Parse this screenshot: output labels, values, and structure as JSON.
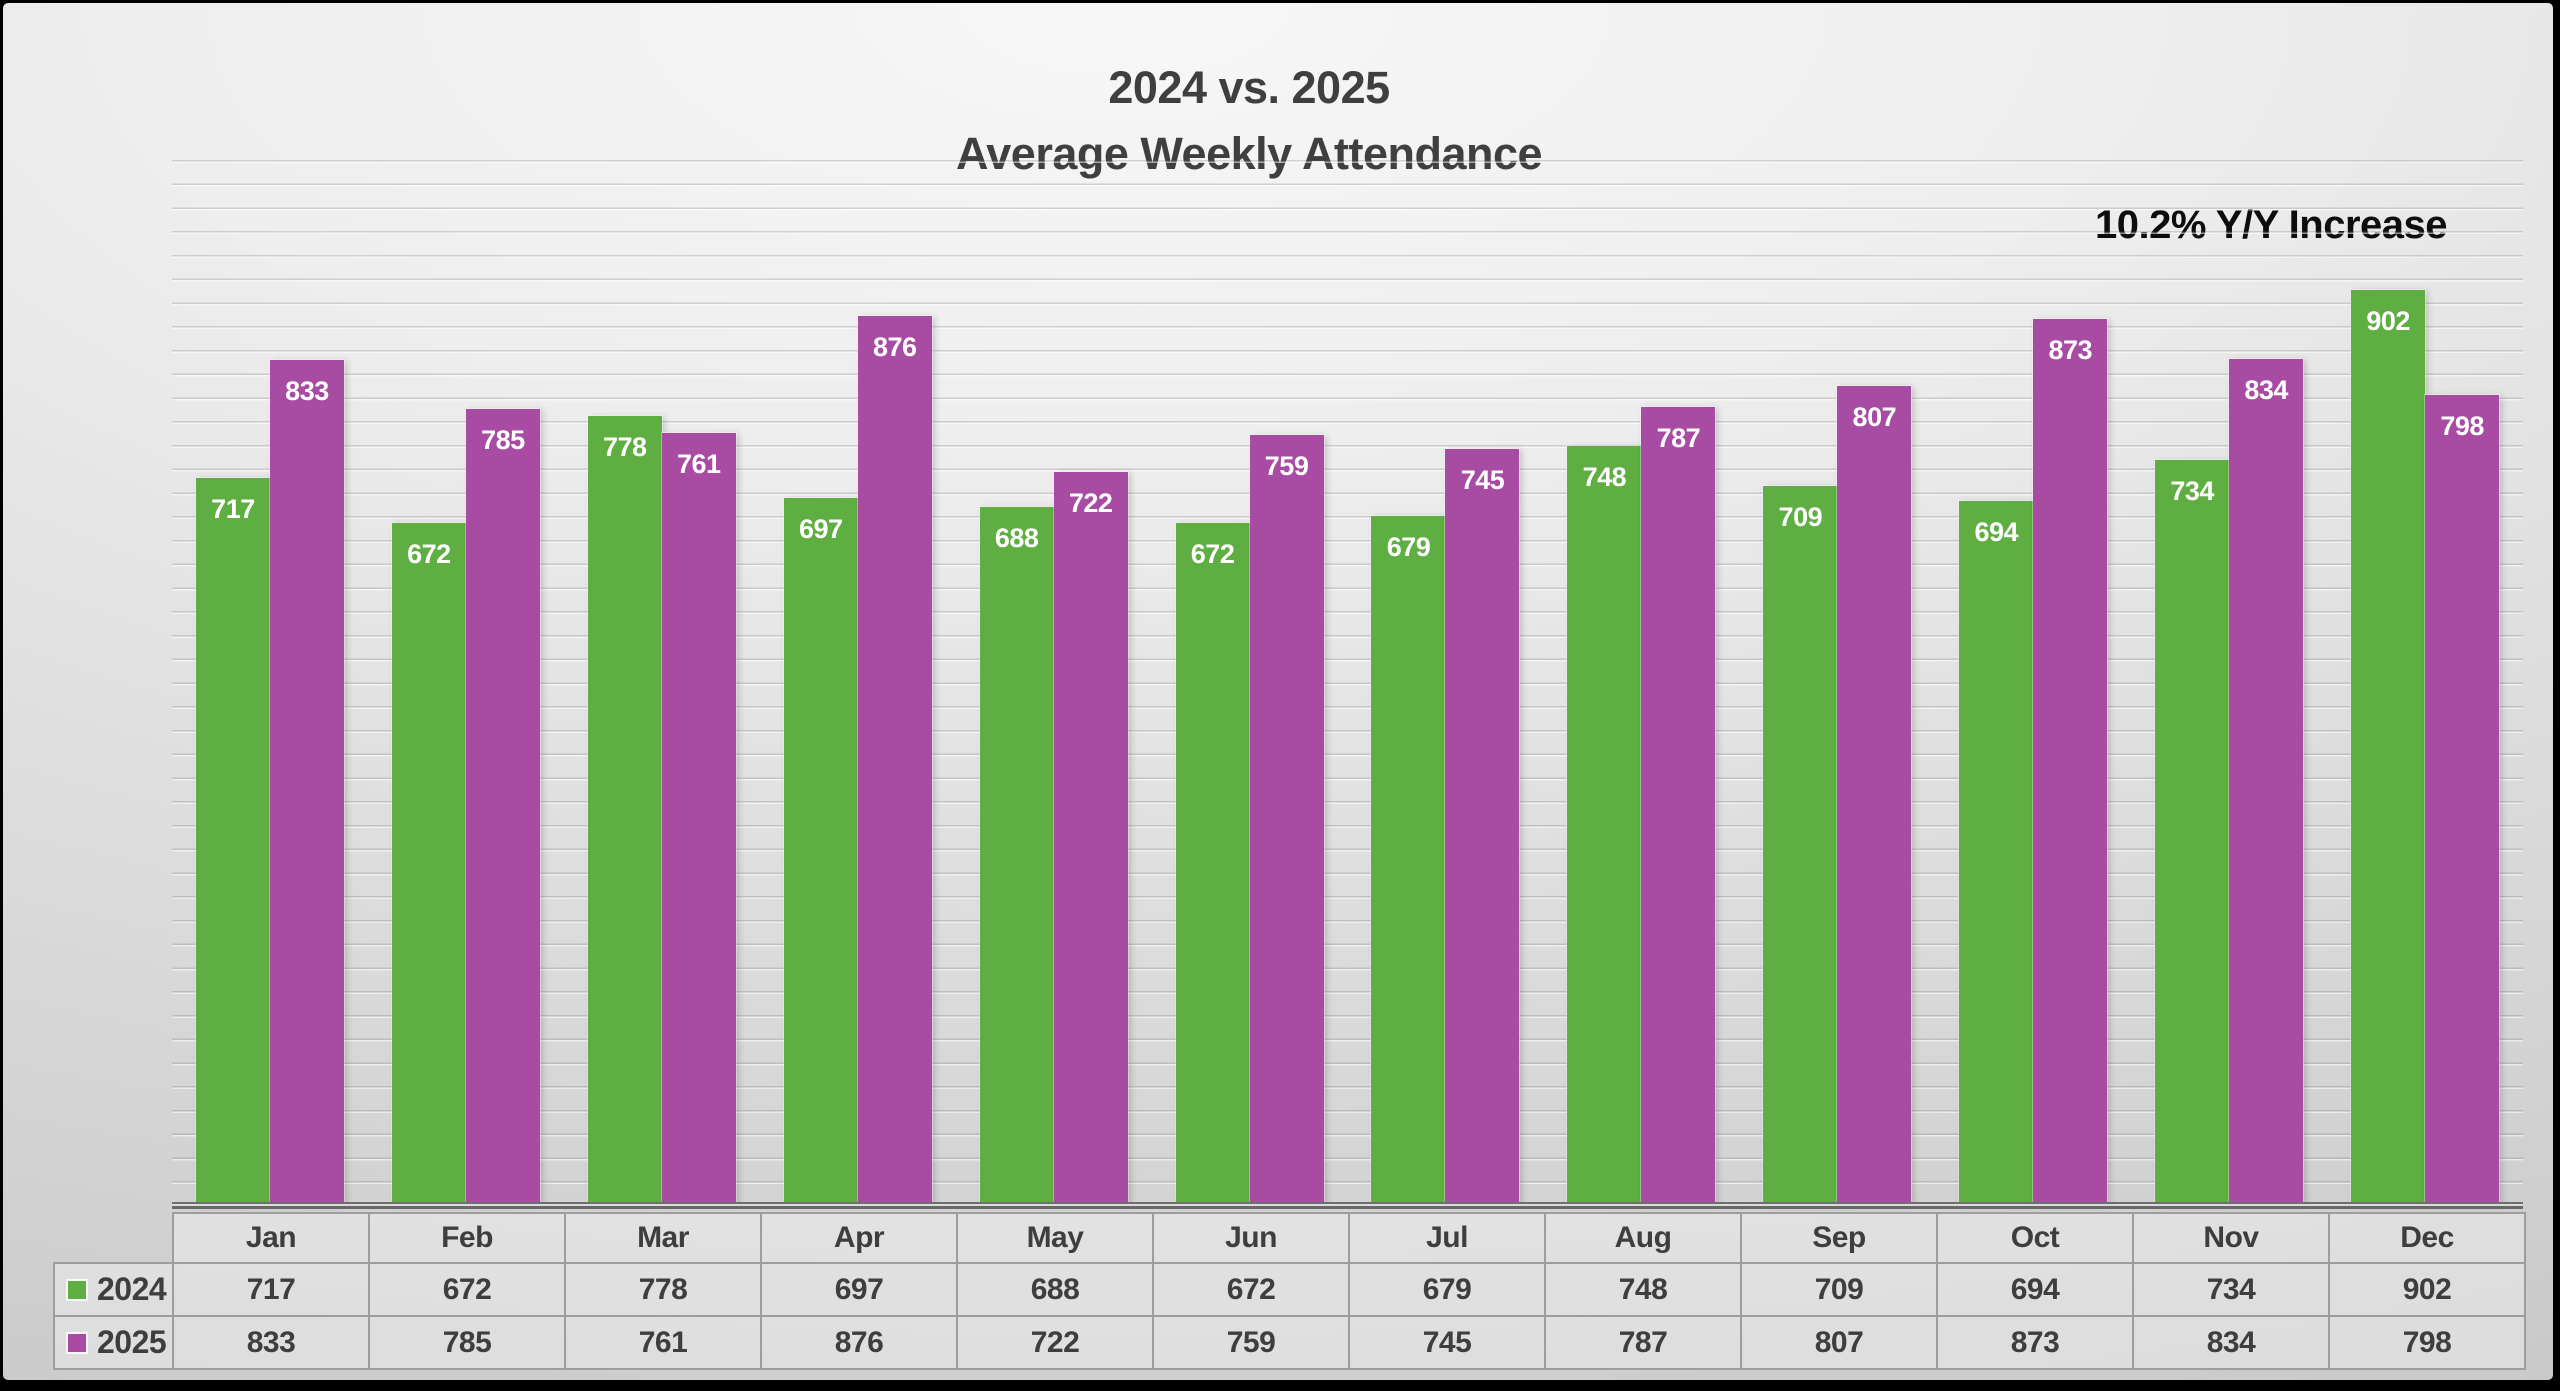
{
  "title": {
    "line1": "2024 vs. 2025",
    "line2": "Average Weekly Attendance"
  },
  "annotation": "10.2% Y/Y Increase",
  "colors": {
    "series_2024": "#5FAE41",
    "series_2025": "#A84BA3",
    "title_text": "#3F3F3F",
    "annotation_text": "#0D0D0D",
    "table_text": "#3E3E3E",
    "table_border": "#9D9D9D",
    "bar_label_text": "#FFFFFF"
  },
  "chart_data": {
    "type": "bar",
    "title": "2024 vs. 2025 Average Weekly Attendance",
    "annotation": "10.2% Y/Y Increase",
    "categories": [
      "Jan",
      "Feb",
      "Mar",
      "Apr",
      "May",
      "Jun",
      "Jul",
      "Aug",
      "Sep",
      "Oct",
      "Nov",
      "Dec"
    ],
    "series": [
      {
        "name": "2024",
        "color": "#5FAE41",
        "values": [
          717,
          672,
          778,
          697,
          688,
          672,
          679,
          748,
          709,
          694,
          734,
          902
        ]
      },
      {
        "name": "2025",
        "color": "#A84BA3",
        "values": [
          833,
          785,
          761,
          876,
          722,
          759,
          745,
          787,
          807,
          873,
          834,
          798
        ]
      }
    ],
    "xlabel": "",
    "ylabel": "",
    "ylim": [
      0,
      1030
    ],
    "y_axis_labels_visible": false,
    "grid": "horizontal",
    "data_labels": "inside-end, white",
    "legend_position": "table-left"
  }
}
